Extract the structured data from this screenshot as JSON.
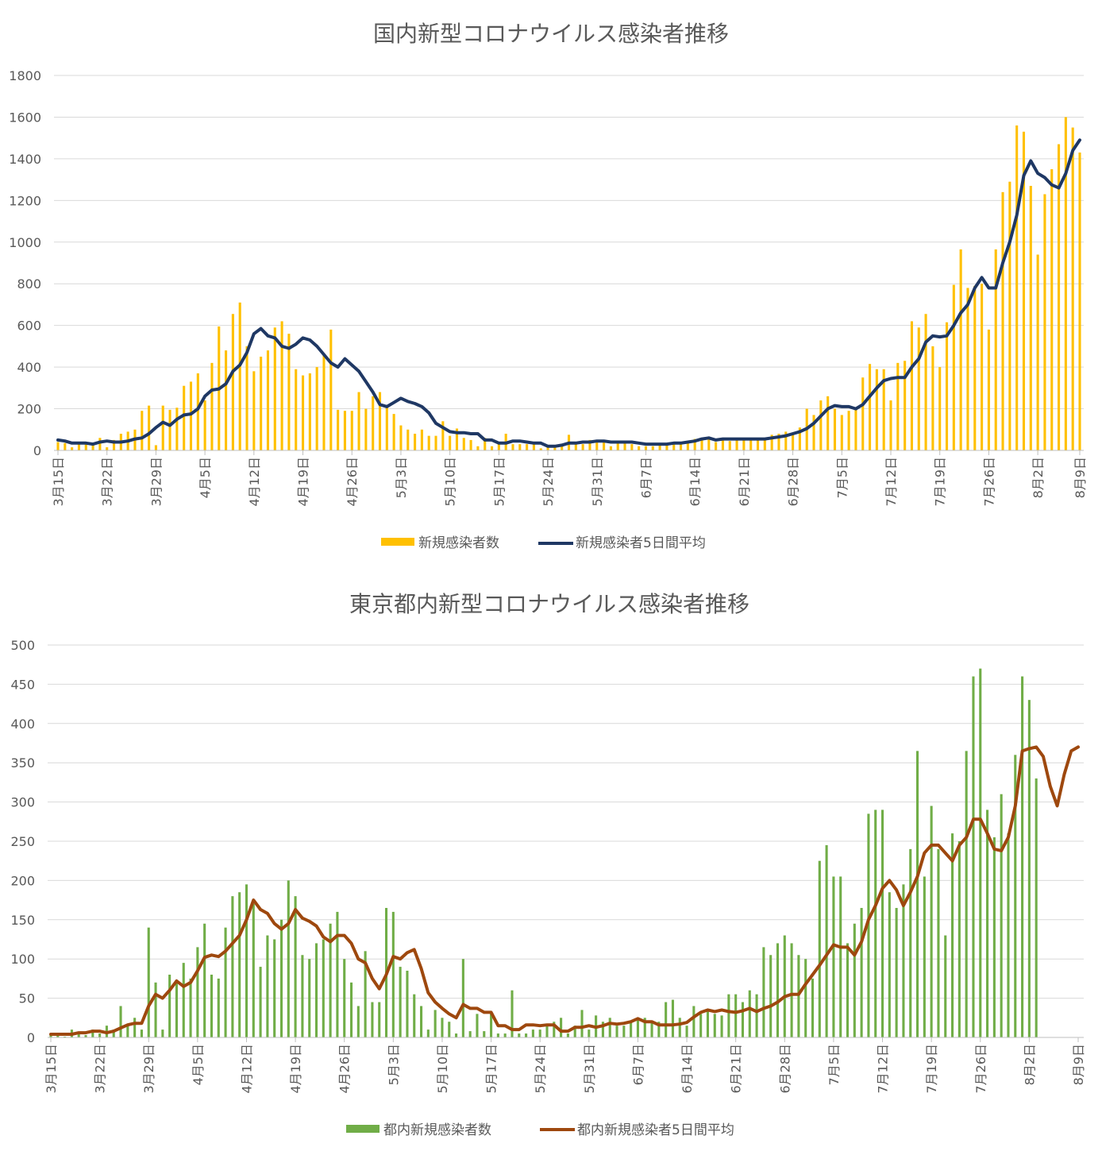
{
  "colors": {
    "national_bar": "#FFC000",
    "national_line": "#1F3864",
    "tokyo_bar": "#70AD47",
    "tokyo_line": "#9E480E",
    "grid": "#D9D9D9",
    "text": "#595959"
  },
  "date_labels": [
    "3月15日",
    "3月22日",
    "3月29日",
    "4月5日",
    "4月12日",
    "4月19日",
    "4月26日",
    "5月3日",
    "5月10日",
    "5月17日",
    "5月24日",
    "5月31日",
    "6月7日",
    "6月14日",
    "6月21日",
    "6月28日",
    "7月5日",
    "7月12日",
    "7月19日",
    "7月26日",
    "8月2日",
    "8月9日"
  ],
  "chart_data": [
    {
      "type": "bar+line",
      "title": "国内新型コロナウイルス感染者推移",
      "ylim": [
        0,
        1800
      ],
      "yticks": [
        0,
        200,
        400,
        600,
        800,
        1000,
        1200,
        1400,
        1600,
        1800
      ],
      "grid": true,
      "legend_position": "bottom",
      "x_start": "3月15日",
      "x_end": "8月9日",
      "series": [
        {
          "name": "新規感染者数",
          "kind": "bar",
          "values": [
            40,
            35,
            15,
            30,
            35,
            25,
            60,
            15,
            50,
            80,
            90,
            100,
            190,
            215,
            25,
            215,
            195,
            205,
            310,
            330,
            370,
            240,
            420,
            595,
            480,
            655,
            710,
            500,
            380,
            450,
            480,
            590,
            620,
            560,
            390,
            360,
            370,
            400,
            460,
            580,
            195,
            190,
            190,
            280,
            200,
            260,
            280,
            210,
            175,
            120,
            100,
            80,
            100,
            70,
            70,
            140,
            70,
            105,
            60,
            50,
            20,
            60,
            20,
            30,
            80,
            30,
            30,
            30,
            35,
            10,
            20,
            20,
            30,
            75,
            40,
            30,
            50,
            50,
            40,
            20,
            40,
            40,
            30,
            20,
            20,
            20,
            30,
            25,
            30,
            30,
            40,
            55,
            50,
            60,
            40,
            60,
            45,
            50,
            55,
            60,
            50,
            60,
            75,
            80,
            90,
            80,
            110,
            200,
            170,
            240,
            260,
            200,
            170,
            190,
            200,
            350,
            415,
            390,
            390,
            240,
            420,
            430,
            620,
            590,
            655,
            500,
            400,
            615,
            795,
            965,
            780,
            790,
            800,
            580,
            965,
            1240,
            1290,
            1560,
            1530,
            1270,
            940,
            1230,
            1350,
            1470,
            1600,
            1550,
            1430
          ]
        },
        {
          "name": "新規感染者5日間平均",
          "kind": "line",
          "values": [
            50,
            45,
            35,
            35,
            35,
            30,
            40,
            45,
            40,
            40,
            45,
            55,
            60,
            80,
            110,
            135,
            120,
            150,
            170,
            175,
            200,
            260,
            290,
            295,
            320,
            380,
            410,
            470,
            560,
            585,
            550,
            540,
            500,
            490,
            510,
            540,
            530,
            500,
            460,
            420,
            400,
            440,
            410,
            380,
            330,
            280,
            220,
            210,
            230,
            250,
            235,
            225,
            210,
            180,
            130,
            110,
            90,
            85,
            85,
            80,
            80,
            50,
            50,
            35,
            35,
            45,
            45,
            40,
            35,
            35,
            20,
            20,
            25,
            35,
            35,
            40,
            40,
            45,
            45,
            40,
            40,
            40,
            40,
            35,
            30,
            30,
            30,
            30,
            35,
            35,
            40,
            45,
            55,
            60,
            50,
            55,
            55,
            55,
            55,
            55,
            55,
            55,
            60,
            65,
            70,
            80,
            90,
            105,
            130,
            165,
            200,
            215,
            210,
            210,
            200,
            220,
            260,
            300,
            335,
            345,
            350,
            350,
            400,
            440,
            520,
            550,
            545,
            550,
            600,
            660,
            700,
            780,
            830,
            780,
            780,
            900,
            1000,
            1130,
            1320,
            1390,
            1330,
            1310,
            1275,
            1260,
            1330,
            1440,
            1490
          ]
        }
      ]
    },
    {
      "type": "bar+line",
      "title": "東京都内新型コロナウイルス感染者推移",
      "ylim": [
        0,
        500
      ],
      "yticks": [
        0,
        50,
        100,
        150,
        200,
        250,
        300,
        350,
        400,
        450,
        500
      ],
      "grid": true,
      "legend_position": "bottom",
      "x_start": "3月15日",
      "x_end": "8月9日",
      "series": [
        {
          "name": "都内新規感染者数",
          "kind": "bar",
          "values": [
            5,
            2,
            1,
            10,
            7,
            3,
            10,
            5,
            15,
            10,
            40,
            15,
            25,
            10,
            140,
            70,
            10,
            80,
            70,
            95,
            75,
            115,
            145,
            80,
            75,
            140,
            180,
            185,
            195,
            170,
            90,
            130,
            125,
            150,
            200,
            180,
            105,
            100,
            120,
            125,
            145,
            160,
            100,
            70,
            40,
            110,
            45,
            45,
            165,
            160,
            90,
            85,
            55,
            40,
            10,
            35,
            25,
            20,
            5,
            100,
            8,
            30,
            8,
            30,
            5,
            5,
            60,
            5,
            5,
            10,
            10,
            15,
            20,
            25,
            5,
            15,
            35,
            10,
            28,
            20,
            25,
            15,
            15,
            20,
            22,
            25,
            20,
            20,
            45,
            48,
            25,
            15,
            40,
            30,
            35,
            30,
            28,
            55,
            55,
            45,
            60,
            55,
            115,
            105,
            120,
            130,
            120,
            105,
            100,
            75,
            225,
            245,
            205,
            205,
            120,
            145,
            165,
            285,
            290,
            290,
            185,
            165,
            195,
            240,
            365,
            205,
            295,
            240,
            130,
            260,
            250,
            365,
            460,
            470,
            290,
            255,
            310,
            260,
            360,
            460,
            430,
            330
          ]
        },
        {
          "name": "都内新規感染者5日間平均",
          "kind": "line",
          "values": [
            4,
            4,
            4,
            4,
            6,
            6,
            8,
            8,
            6,
            8,
            12,
            16,
            18,
            18,
            40,
            55,
            50,
            60,
            72,
            65,
            70,
            85,
            102,
            105,
            103,
            110,
            120,
            130,
            150,
            175,
            163,
            158,
            145,
            138,
            145,
            163,
            152,
            148,
            142,
            128,
            122,
            130,
            130,
            120,
            100,
            95,
            75,
            62,
            80,
            103,
            100,
            108,
            112,
            88,
            57,
            45,
            37,
            30,
            25,
            42,
            37,
            37,
            32,
            32,
            15,
            15,
            10,
            10,
            16,
            16,
            15,
            16,
            16,
            8,
            8,
            13,
            13,
            15,
            13,
            15,
            18,
            17,
            18,
            20,
            24,
            20,
            20,
            16,
            16,
            16,
            17,
            19,
            26,
            32,
            35,
            33,
            35,
            33,
            32,
            34,
            37,
            33,
            37,
            40,
            45,
            52,
            55,
            55,
            68,
            80,
            92,
            105,
            118,
            115,
            115,
            105,
            122,
            150,
            168,
            190,
            200,
            188,
            168,
            185,
            205,
            235,
            245,
            245,
            235,
            225,
            245,
            255,
            278,
            278,
            260,
            240,
            238,
            255,
            295,
            365,
            368,
            370,
            358,
            320,
            295,
            335,
            365,
            370
          ]
        }
      ]
    }
  ]
}
